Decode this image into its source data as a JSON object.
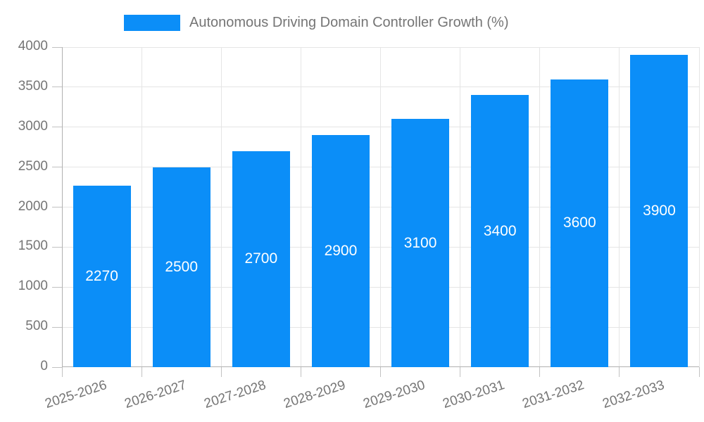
{
  "legend": {
    "label": "Autonomous Driving Domain Controller Growth (%)"
  },
  "chart_data": {
    "type": "bar",
    "title": "Autonomous Driving Domain Controller Growth (%)",
    "categories": [
      "2025-2026",
      "2026-2027",
      "2027-2028",
      "2028-2029",
      "2029-2030",
      "2030-2031",
      "2031-2032",
      "2032-2033"
    ],
    "values": [
      2270,
      2500,
      2700,
      2900,
      3100,
      3400,
      3600,
      3900
    ],
    "data_labels": [
      "2270",
      "2500",
      "2700",
      "2900",
      "3100",
      "3400",
      "3600",
      "3900"
    ],
    "xlabel": "",
    "ylabel": "",
    "ylim": [
      0,
      4000
    ],
    "y_ticks": [
      0,
      500,
      1000,
      1500,
      2000,
      2500,
      3000,
      3500,
      4000
    ],
    "grid": true,
    "legend_position": "top",
    "colors": {
      "bar": "#0b8ef8",
      "data_label": "#ffffff",
      "grid": "#e5e5e5",
      "axis": "#b0b0b0",
      "tick": "#c2c2c2",
      "text": "#757575"
    }
  }
}
